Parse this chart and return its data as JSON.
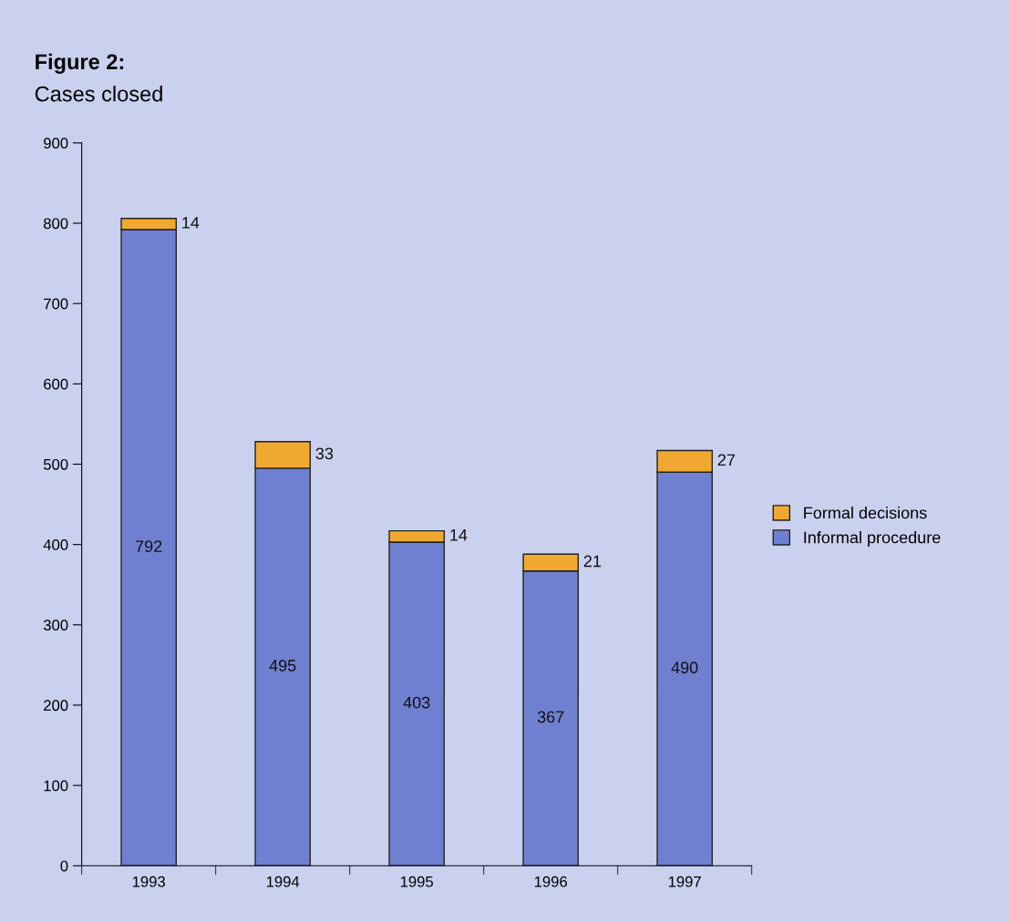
{
  "chart_data": {
    "type": "bar",
    "title": "Figure 2:",
    "subtitle": "Cases closed",
    "categories": [
      "1993",
      "1994",
      "1995",
      "1996",
      "1997"
    ],
    "stacked": true,
    "data_labels": true,
    "legend": "right",
    "grid": false,
    "ylim": [
      0,
      900
    ],
    "yticks": [
      0,
      100,
      200,
      300,
      400,
      500,
      600,
      700,
      800,
      900
    ],
    "series": [
      {
        "name": "Informal procedure",
        "color": "#7080d0",
        "values": [
          792,
          495,
          403,
          367,
          490
        ]
      },
      {
        "name": "Formal decisions",
        "color": "#f0a830",
        "values": [
          14,
          33,
          14,
          21,
          27
        ]
      }
    ]
  }
}
